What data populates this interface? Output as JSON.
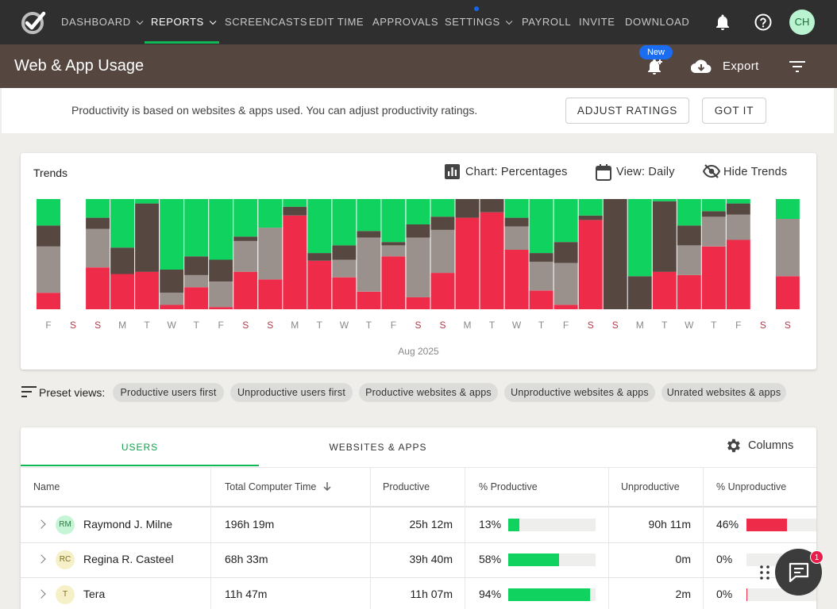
{
  "nav": {
    "items": [
      {
        "label": "DASHBOARD",
        "dropdown": true
      },
      {
        "label": "REPORTS",
        "dropdown": true,
        "active": true
      },
      {
        "label": "SCREENCASTS",
        "dropdown": false
      },
      {
        "label": "EDIT TIME",
        "dropdown": false
      },
      {
        "label": "APPROVALS",
        "dropdown": false
      },
      {
        "label": "SETTINGS",
        "dropdown": true
      },
      {
        "label": "PAYROLL",
        "dropdown": false
      },
      {
        "label": "INVITE",
        "dropdown": false
      },
      {
        "label": "DOWNLOAD",
        "dropdown": false
      }
    ],
    "icons": [
      "bell-icon",
      "help-icon"
    ],
    "avatar_initials": "CH"
  },
  "header": {
    "title": "Web & App Usage",
    "new_badge": "New",
    "export_label": "Export"
  },
  "banner": {
    "text": "Productivity is based on websites & apps used. You can adjust productivity ratings.",
    "adjust_label": "ADJUST RATINGS",
    "gotit_label": "GOT IT"
  },
  "trends": {
    "title": "Trends",
    "chart_control": "Chart: Percentages",
    "view_control": "View: Daily",
    "hide_control": "Hide Trends",
    "month_label": "Aug 2025"
  },
  "chart_data": {
    "type": "bar",
    "stacked": true,
    "categories": [
      "F",
      "S",
      "S",
      "M",
      "T",
      "W",
      "T",
      "F",
      "S",
      "S",
      "M",
      "T",
      "W",
      "T",
      "F",
      "S",
      "S",
      "M",
      "T",
      "W",
      "T",
      "F",
      "S",
      "S",
      "M",
      "T",
      "W",
      "T",
      "F",
      "S",
      "S"
    ],
    "weekend_color": "#b23a48",
    "weekday_color": "#888888",
    "ylim": [
      0,
      100
    ],
    "series": [
      {
        "color": "#ef2b4a",
        "values": [
          15,
          0,
          38,
          32,
          34,
          4,
          20,
          2,
          34,
          27,
          85,
          44,
          29,
          16,
          48,
          11,
          33,
          83,
          88,
          54,
          17,
          4,
          81,
          0,
          0,
          34,
          31,
          57,
          63,
          0,
          30
        ]
      },
      {
        "color": "#9a918c",
        "values": [
          42,
          0,
          35,
          0,
          0,
          11,
          11,
          23,
          28,
          47,
          0,
          0,
          16,
          49,
          10,
          54,
          39,
          0,
          0,
          21,
          26,
          38,
          0,
          0,
          0,
          0,
          27,
          27,
          23,
          0,
          52
        ]
      },
      {
        "color": "#564741",
        "values": [
          19,
          0,
          10,
          24,
          62,
          21,
          17,
          20,
          4,
          0,
          8,
          7,
          13,
          6,
          3,
          12,
          12,
          17,
          12,
          8,
          8,
          19,
          4,
          100,
          30,
          64,
          18,
          5,
          10,
          0,
          0
        ]
      },
      {
        "color": "#10d25f",
        "values": [
          24,
          0,
          17,
          44,
          4,
          64,
          52,
          55,
          34,
          26,
          7,
          49,
          42,
          29,
          39,
          23,
          16,
          0,
          0,
          17,
          49,
          39,
          15,
          0,
          70,
          2,
          24,
          11,
          4,
          0,
          18
        ]
      }
    ]
  },
  "presets": {
    "label": "Preset views:",
    "chips": [
      "Productive users first",
      "Unproductive users first",
      "Productive websites & apps",
      "Unproductive websites & apps",
      "Unrated websites & apps"
    ]
  },
  "table": {
    "tabs": [
      "USERS",
      "WEBSITES & APPS"
    ],
    "columns_label": "Columns",
    "headers": [
      "Name",
      "Total Computer Time",
      "Productive",
      "% Productive",
      "Unproductive",
      "% Unproductive"
    ],
    "rows": [
      {
        "initials": "RM",
        "avatar_bg": "#c6f5d5",
        "avatar_fg": "#2a7a45",
        "name": "Raymond J. Milne",
        "total": "196h 19m",
        "productive": "25h 12m",
        "pct_productive": "13%",
        "pct_productive_value": 0.13,
        "unproductive": "90h 11m",
        "pct_unproductive": "46%",
        "pct_unproductive_value": 0.46
      },
      {
        "initials": "RC",
        "avatar_bg": "#f6f0c8",
        "avatar_fg": "#7d6d20",
        "name": "Regina R. Casteel",
        "total": "68h 33m",
        "productive": "39h 40m",
        "pct_productive": "58%",
        "pct_productive_value": 0.58,
        "unproductive": "0m",
        "pct_unproductive": "0%",
        "pct_unproductive_value": 0
      },
      {
        "initials": "T",
        "avatar_bg": "#f6f0c8",
        "avatar_fg": "#7d6d20",
        "name": "Tera",
        "total": "11h 47m",
        "productive": "11h 07m",
        "pct_productive": "94%",
        "pct_productive_value": 0.94,
        "unproductive": "2m",
        "pct_unproductive": "0%",
        "pct_unproductive_value": 0.005
      }
    ]
  },
  "chat": {
    "badge_count": "1"
  },
  "colors": {
    "productive": "#10d25f",
    "unproductive": "#ef2b4a",
    "accent": "#10b856",
    "header_bg": "#554740",
    "nav_bg": "#2f2f2f"
  }
}
